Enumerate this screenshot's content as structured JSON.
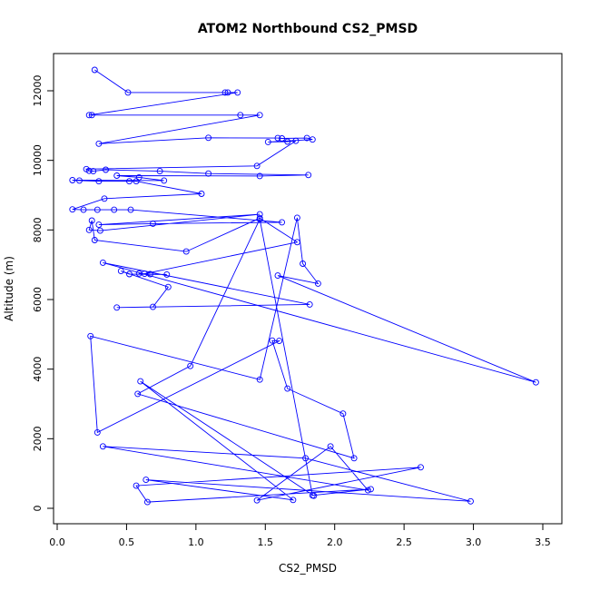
{
  "chart_data": {
    "type": "line",
    "title": "ATOM2 Northbound CS2_PMSD",
    "xlabel": "CS2_PMSD",
    "ylabel": "Altitude (m)",
    "xlim": [
      0,
      3.5
    ],
    "ylim": [
      0,
      12000
    ],
    "xticks": [
      "0.0",
      "0.5",
      "1.0",
      "1.5",
      "2.0",
      "2.5",
      "3.0",
      "3.5"
    ],
    "yticks": [
      "0",
      "2000",
      "4000",
      "6000",
      "8000",
      "10000",
      "12000"
    ],
    "grid": false,
    "legend": "none",
    "color": "#0000ff",
    "markers": "open circles",
    "series": [
      {
        "x": [
          0.27,
          0.51,
          1.21,
          1.23,
          1.3,
          0.23,
          0.25,
          1.32,
          1.46,
          0.3,
          1.09,
          1.59,
          1.62,
          1.8,
          1.84,
          1.52,
          1.66,
          1.72,
          1.44,
          0.21,
          0.23,
          0.26,
          0.35,
          0.74,
          1.09,
          1.81,
          1.46,
          0.43,
          0.59,
          0.77,
          0.11,
          0.16,
          0.3,
          0.52,
          0.57,
          1.04,
          0.34,
          0.11,
          0.19,
          0.29,
          0.41,
          0.53,
          1.62,
          0.69,
          0.3,
          1.46,
          0.31,
          0.23,
          0.25,
          0.27,
          0.93,
          1.46,
          1.73,
          0.63,
          0.59,
          0.67,
          0.79,
          0.52,
          0.46,
          0.8,
          0.69,
          0.43,
          1.82,
          0.33,
          3.45,
          1.59,
          1.88,
          1.77,
          1.73,
          1.46,
          0.24,
          0.29,
          1.6,
          1.55,
          1.66,
          2.06,
          2.14,
          0.58,
          0.96,
          1.46,
          1.84,
          2.26,
          0.65,
          0.57,
          2.62,
          1.44,
          1.97,
          2.24,
          0.33,
          1.79,
          2.98,
          0.64,
          1.7,
          0.6,
          1.85
        ]
      }
    ]
  }
}
